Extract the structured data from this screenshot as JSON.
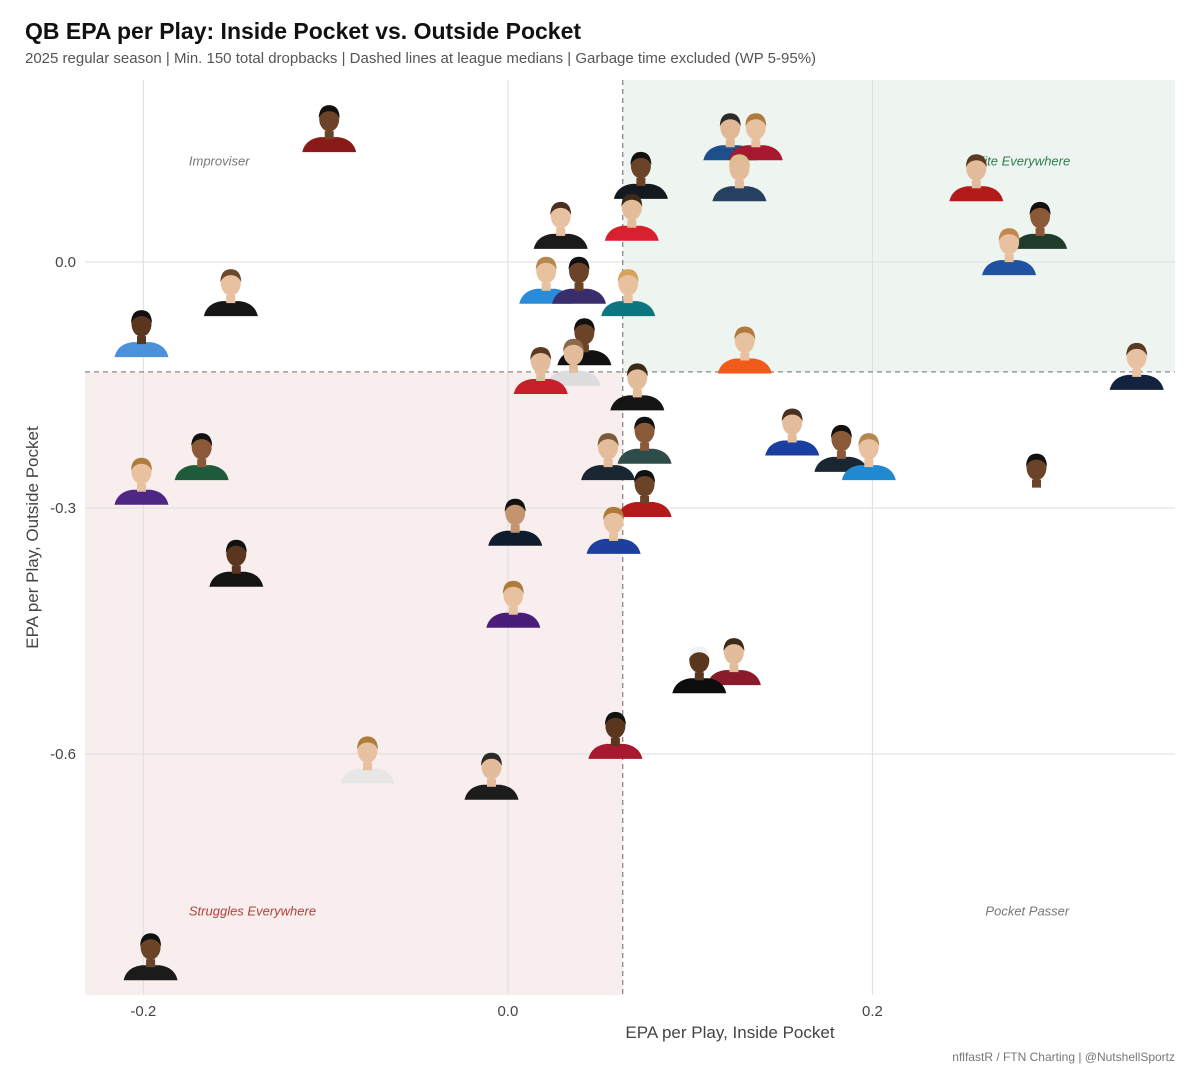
{
  "chart_data": {
    "type": "scatter",
    "title": "QB EPA per Play: Inside Pocket vs. Outside Pocket",
    "subtitle": "2025 regular season | Min. 150 total dropbacks | Dashed lines at league medians | Garbage time excluded (WP 5-95%)",
    "caption": "nflfastR / FTN Charting | @NutshellSportz",
    "xlabel": "EPA per Play, Inside Pocket",
    "ylabel": "EPA per Play, Outside Pocket",
    "xlim": [
      -0.232,
      0.366
    ],
    "ylim": [
      -0.894,
      0.222
    ],
    "x_ticks": [
      {
        "value": -0.2,
        "label": "-0.2"
      },
      {
        "value": 0.0,
        "label": "0.0"
      },
      {
        "value": 0.2,
        "label": "0.2"
      }
    ],
    "y_ticks": [
      {
        "value": 0.0,
        "label": "0.0"
      },
      {
        "value": -0.3,
        "label": "-0.3"
      },
      {
        "value": -0.6,
        "label": "-0.6"
      }
    ],
    "median_x": 0.063,
    "median_y": -0.134,
    "grid": true,
    "quadrant_colors": {
      "elite": "#eef5f0",
      "struggles": "#f9eeee"
    },
    "quadrant_labels": [
      {
        "text": "Improviser",
        "x": -0.175,
        "y": 0.118,
        "color": "#777777"
      },
      {
        "text": "Elite Everywhere",
        "x": 0.255,
        "y": 0.118,
        "color": "#2e7d4f"
      },
      {
        "text": "Struggles Everywhere",
        "x": -0.175,
        "y": -0.797,
        "color": "#b0413e"
      },
      {
        "text": "Pocket Passer",
        "x": 0.262,
        "y": -0.797,
        "color": "#777777"
      }
    ],
    "points": [
      {
        "x": -0.098,
        "y": 0.145,
        "jersey": "#8a1a1a",
        "skin": "#6b4328",
        "hair": "#111111"
      },
      {
        "x": 0.122,
        "y": 0.135,
        "jersey": "#1f4f8a",
        "skin": "#e0b896",
        "hair": "#2a2a2a"
      },
      {
        "x": 0.136,
        "y": 0.135,
        "jersey": "#a6192e",
        "skin": "#e8c2a0",
        "hair": "#b07a3c"
      },
      {
        "x": 0.073,
        "y": 0.088,
        "jersey": "#14181f",
        "skin": "#6b4328",
        "hair": "#111111"
      },
      {
        "x": 0.127,
        "y": 0.085,
        "jersey": "#27405f",
        "skin": "#e3bd9b",
        "hair": "#d9c08a"
      },
      {
        "x": 0.257,
        "y": 0.085,
        "jersey": "#b31b1b",
        "skin": "#e3bd9b",
        "hair": "#5a3a22"
      },
      {
        "x": 0.068,
        "y": 0.037,
        "jersey": "#d9202f",
        "skin": "#e3bd9b",
        "hair": "#3a2a1a"
      },
      {
        "x": 0.029,
        "y": 0.027,
        "jersey": "#1b1b1b",
        "skin": "#e8c2a0",
        "hair": "#4a3020"
      },
      {
        "x": 0.292,
        "y": 0.027,
        "jersey": "#1f3b2b",
        "skin": "#8a5a38",
        "hair": "#111111"
      },
      {
        "x": 0.275,
        "y": -0.005,
        "jersey": "#2151a1",
        "skin": "#e8c2a0",
        "hair": "#c0884a"
      },
      {
        "x": 0.021,
        "y": -0.04,
        "jersey": "#2a8bd9",
        "skin": "#e8c2a0",
        "hair": "#b5884e"
      },
      {
        "x": 0.039,
        "y": -0.04,
        "jersey": "#3a2d6b",
        "skin": "#6b4328",
        "hair": "#111111"
      },
      {
        "x": 0.066,
        "y": -0.055,
        "jersey": "#0d7580",
        "skin": "#e8c2a0",
        "hair": "#d6a35a"
      },
      {
        "x": -0.152,
        "y": -0.055,
        "jersey": "#161616",
        "skin": "#e8c2a0",
        "hair": "#6b4a2c"
      },
      {
        "x": -0.201,
        "y": -0.105,
        "jersey": "#4b92db",
        "skin": "#5a361f",
        "hair": "#111111"
      },
      {
        "x": 0.042,
        "y": -0.115,
        "jersey": "#111111",
        "skin": "#6b4328",
        "hair": "#111111"
      },
      {
        "x": 0.036,
        "y": -0.14,
        "jersey": "#dcdcdc",
        "skin": "#e3bd9b",
        "hair": "#8a6a4a"
      },
      {
        "x": 0.13,
        "y": -0.125,
        "jersey": "#f05a1a",
        "skin": "#e8c2a0",
        "hair": "#b07a3c"
      },
      {
        "x": 0.018,
        "y": -0.15,
        "jersey": "#c8202a",
        "skin": "#e3bd9b",
        "hair": "#5a3a22"
      },
      {
        "x": 0.345,
        "y": -0.145,
        "jersey": "#12223f",
        "skin": "#e8c2a0",
        "hair": "#5a3a22"
      },
      {
        "x": 0.071,
        "y": -0.17,
        "jersey": "#151515",
        "skin": "#e3bd9b",
        "hair": "#3a2a1a"
      },
      {
        "x": 0.156,
        "y": -0.225,
        "jersey": "#1a3fa0",
        "skin": "#e3bd9b",
        "hair": "#4a3020"
      },
      {
        "x": 0.183,
        "y": -0.245,
        "jersey": "#1b2633",
        "skin": "#8a5a38",
        "hair": "#111111"
      },
      {
        "x": 0.075,
        "y": -0.235,
        "jersey": "#2e4d4a",
        "skin": "#8a5a38",
        "hair": "#111111"
      },
      {
        "x": 0.198,
        "y": -0.255,
        "jersey": "#2089cf",
        "skin": "#e8c2a0",
        "hair": "#b5884e"
      },
      {
        "x": 0.055,
        "y": -0.255,
        "jersey": "#1b2633",
        "skin": "#e3bd9b",
        "hair": "#7a5a3a"
      },
      {
        "x": -0.168,
        "y": -0.255,
        "jersey": "#1e5b3a",
        "skin": "#8a5a38",
        "hair": "#111111"
      },
      {
        "x": -0.201,
        "y": -0.285,
        "jersey": "#4f2683",
        "skin": "#e8c2a0",
        "hair": "#b07a3c"
      },
      {
        "x": 0.29,
        "y": -0.28,
        "jersey": "#ffffff",
        "skin": "#6b4328",
        "hair": "#111111"
      },
      {
        "x": 0.075,
        "y": -0.3,
        "jersey": "#b31b1b",
        "skin": "#6b4328",
        "hair": "#111111"
      },
      {
        "x": 0.004,
        "y": -0.335,
        "jersey": "#0f1c2e",
        "skin": "#c29470",
        "hair": "#111111"
      },
      {
        "x": 0.058,
        "y": -0.345,
        "jersey": "#1f3fa0",
        "skin": "#e8c2a0",
        "hair": "#b07a3c"
      },
      {
        "x": -0.149,
        "y": -0.385,
        "jersey": "#141414",
        "skin": "#5a361f",
        "hair": "#111111"
      },
      {
        "x": 0.003,
        "y": -0.435,
        "jersey": "#4a1d7a",
        "skin": "#e8c2a0",
        "hair": "#b07a3c"
      },
      {
        "x": 0.124,
        "y": -0.505,
        "jersey": "#8a1b2a",
        "skin": "#e3bd9b",
        "hair": "#3a2a1a"
      },
      {
        "x": 0.105,
        "y": -0.515,
        "jersey": "#0d0d0d",
        "skin": "#5a361f",
        "hair": "#f2f2f2"
      },
      {
        "x": 0.059,
        "y": -0.595,
        "jersey": "#a6192e",
        "skin": "#5a361f",
        "hair": "#111111"
      },
      {
        "x": -0.077,
        "y": -0.625,
        "jersey": "#e9e6e6",
        "skin": "#e8c2a0",
        "hair": "#b07a3c"
      },
      {
        "x": -0.009,
        "y": -0.645,
        "jersey": "#1c1c1c",
        "skin": "#e3bd9b",
        "hair": "#2a2a2a"
      },
      {
        "x": -0.196,
        "y": -0.865,
        "jersey": "#1b1b1b",
        "skin": "#6b4328",
        "hair": "#111111"
      }
    ]
  }
}
